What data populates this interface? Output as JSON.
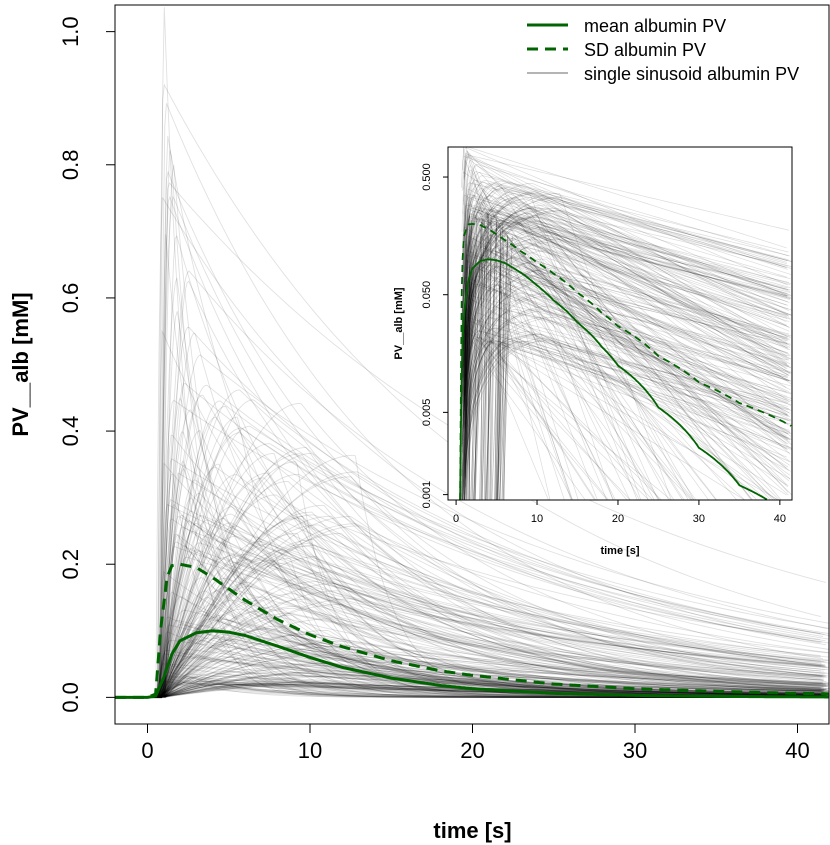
{
  "chart_data": [
    {
      "type": "line",
      "xlabel": "time [s]",
      "ylabel": "PV__alb [mM]",
      "xlim": [
        -2,
        42
      ],
      "ylim": [
        -0.04,
        1.04
      ],
      "x_ticks": [
        0,
        10,
        20,
        30,
        40
      ],
      "x_tick_labels": [
        "0",
        "10",
        "20",
        "30",
        "40"
      ],
      "y_ticks": [
        0.0,
        0.2,
        0.4,
        0.6,
        0.8,
        1.0
      ],
      "y_tick_labels": [
        "0.0",
        "0.2",
        "0.4",
        "0.6",
        "0.8",
        "1.0"
      ],
      "legend": {
        "placement": "top-right",
        "entries": [
          {
            "label": "mean albumin PV",
            "color": "#006400",
            "style": "solid"
          },
          {
            "label": "SD albumin PV",
            "color": "#006400",
            "style": "dashed"
          },
          {
            "label": "single sinusoid albumin PV",
            "color": "#888888",
            "style": "thin"
          }
        ]
      },
      "series": [
        {
          "name": "mean albumin PV",
          "color": "#006400",
          "style": "solid",
          "x": [
            -2,
            0,
            0.5,
            1,
            1.5,
            2,
            3,
            4,
            5,
            6,
            8,
            10,
            12,
            15,
            18,
            20,
            25,
            30,
            35,
            40,
            42
          ],
          "y": [
            0,
            0,
            0.002,
            0.03,
            0.065,
            0.085,
            0.097,
            0.1,
            0.098,
            0.093,
            0.077,
            0.06,
            0.045,
            0.029,
            0.018,
            0.013,
            0.006,
            0.003,
            0.0015,
            0.0008,
            0.0006
          ]
        },
        {
          "name": "SD albumin PV",
          "color": "#006400",
          "style": "dashed",
          "x": [
            -2,
            0,
            0.5,
            0.8,
            1.2,
            1.5,
            2,
            3,
            4,
            5,
            6,
            8,
            10,
            12,
            15,
            18,
            20,
            25,
            30,
            35,
            40,
            42
          ],
          "y": [
            0,
            0,
            0.005,
            0.1,
            0.18,
            0.198,
            0.2,
            0.195,
            0.18,
            0.163,
            0.146,
            0.117,
            0.094,
            0.076,
            0.055,
            0.04,
            0.033,
            0.02,
            0.013,
            0.009,
            0.006,
            0.0055
          ]
        }
      ],
      "single_sinusoid_profiles": {
        "description_of_band": "many thin grey curves rising sharply near t=1 s and decaying",
        "peak_values": [
          1.04,
          0.83,
          0.8,
          0.63,
          0.58,
          0.45,
          0.4,
          0.35,
          0.3,
          0.28,
          0.25,
          0.22,
          0.2,
          0.18,
          0.16,
          0.15,
          0.14,
          0.12,
          0.1,
          0.09,
          0.08,
          0.07,
          0.06
        ]
      }
    },
    {
      "type": "line",
      "xlabel": "time [s]",
      "ylabel": "PV__alb [mM]",
      "xlim": [
        -1,
        41.5
      ],
      "ylim_log": [
        0.0009,
        0.9
      ],
      "log_y": true,
      "x_ticks": [
        0,
        10,
        20,
        30,
        40
      ],
      "x_tick_labels": [
        "0",
        "10",
        "20",
        "30",
        "40"
      ],
      "y_ticks": [
        0.001,
        0.005,
        0.05,
        0.5
      ],
      "y_tick_labels": [
        "0.001",
        "0.005",
        "0.050",
        "0.500"
      ],
      "series": [
        {
          "name": "mean albumin PV",
          "color": "#006400",
          "style": "solid",
          "x": [
            0.5,
            0.6,
            0.8,
            1,
            1.5,
            2,
            3,
            4,
            5,
            6,
            8,
            10,
            12,
            15,
            18,
            20,
            25,
            30,
            35,
            38.5
          ],
          "y": [
            0.0009,
            0.004,
            0.02,
            0.035,
            0.065,
            0.083,
            0.097,
            0.1,
            0.098,
            0.093,
            0.077,
            0.06,
            0.045,
            0.029,
            0.018,
            0.0125,
            0.0055,
            0.0025,
            0.0012,
            0.0009
          ]
        },
        {
          "name": "SD albumin PV",
          "color": "#006400",
          "style": "dashed",
          "x": [
            0.5,
            0.6,
            0.8,
            1,
            1.5,
            2,
            3,
            4,
            5,
            6,
            8,
            10,
            12,
            15,
            18,
            20,
            25,
            30,
            35,
            41.5
          ],
          "y": [
            0.0009,
            0.01,
            0.1,
            0.16,
            0.198,
            0.2,
            0.195,
            0.18,
            0.163,
            0.146,
            0.117,
            0.094,
            0.076,
            0.052,
            0.035,
            0.027,
            0.015,
            0.009,
            0.006,
            0.0038
          ]
        }
      ]
    }
  ]
}
